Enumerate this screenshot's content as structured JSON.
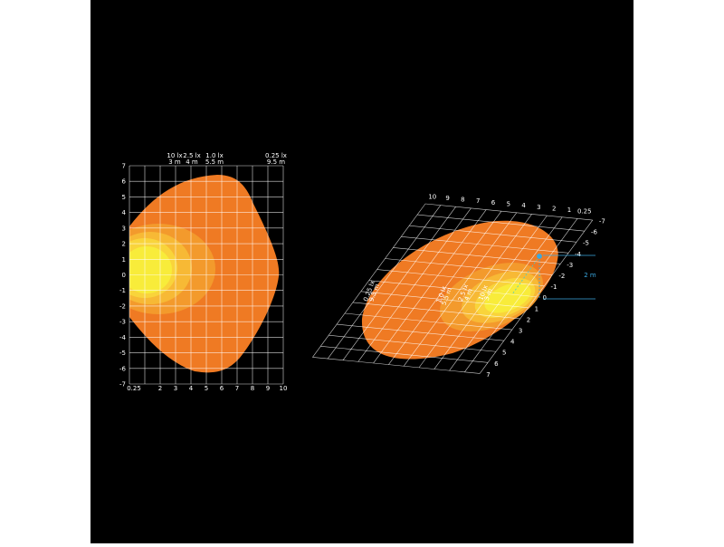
{
  "left_plot": {
    "top_labels": [
      {
        "lux": "10 lx",
        "distance": "3 m"
      },
      {
        "lux": "2.5 lx",
        "distance": "4 m"
      },
      {
        "lux": "1.0 lx",
        "distance": "5.5 m"
      },
      {
        "lux": "0.25 lx",
        "distance": "9.5 m"
      }
    ],
    "x_labels": [
      "0.25",
      "2",
      "3",
      "4",
      "5",
      "6",
      "7",
      "8",
      "9",
      "10"
    ],
    "y_labels": [
      "7",
      "6",
      "5",
      "4",
      "3",
      "2",
      "1",
      "0",
      "-1",
      "-2",
      "-3",
      "-4",
      "-5",
      "-6",
      "-7"
    ]
  },
  "right_plot": {
    "top_labels": [
      "10",
      "9",
      "8",
      "7",
      "6",
      "5",
      "4",
      "3",
      "2",
      "1",
      "0.25"
    ],
    "side_labels": [
      "-7",
      "-6",
      "-5",
      "-4",
      "-3",
      "-2",
      "-1",
      "0",
      "1",
      "2",
      "3",
      "4",
      "5",
      "6",
      "7"
    ],
    "contour_labels": [
      {
        "lux": "0.25 lx",
        "distance": "9.5 m"
      },
      {
        "lux": "1.0 lx",
        "distance": "5.5 m"
      },
      {
        "lux": "2.5 lx",
        "distance": "4 m"
      },
      {
        "lux": "10 lx",
        "distance": "3 m"
      }
    ],
    "height_label": "2 m"
  }
}
